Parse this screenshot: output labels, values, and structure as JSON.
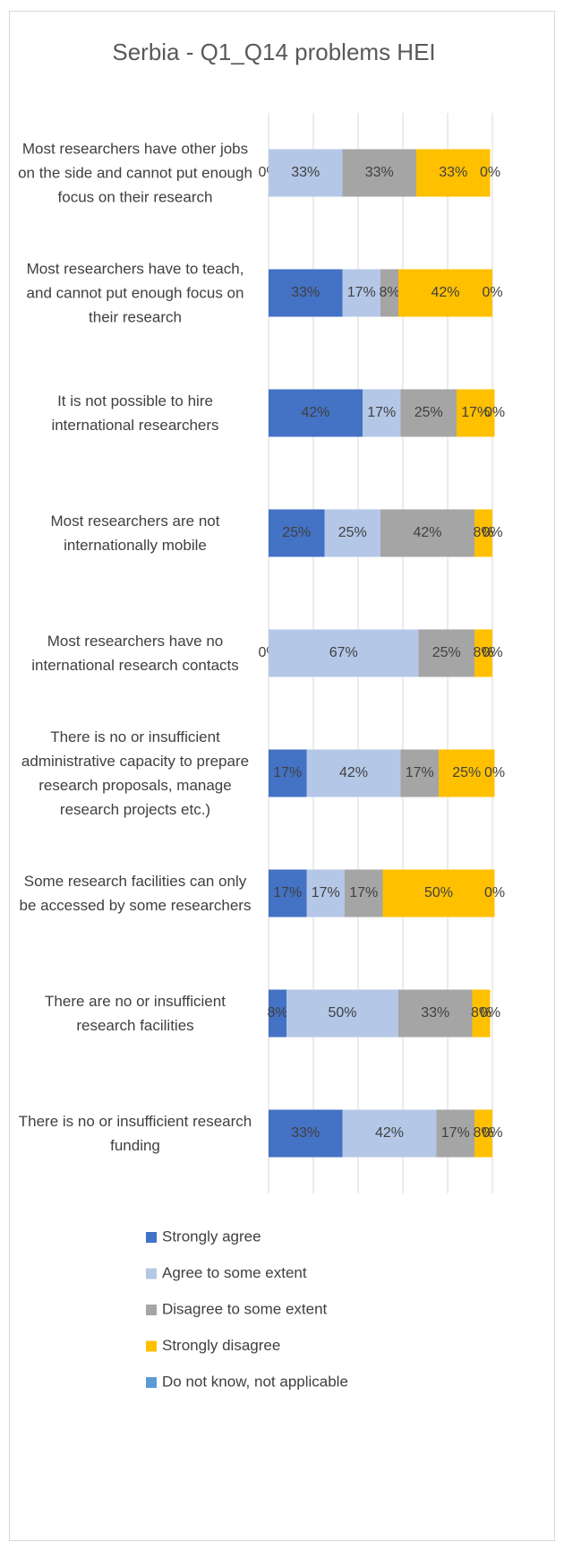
{
  "chart_data": {
    "type": "stacked_bar_horizontal",
    "title": "Serbia - Q1_Q14 problems HEI",
    "categories": [
      "Most researchers have other jobs on the side and cannot put enough focus on their research",
      "Most researchers have to teach, and cannot put enough focus on their research",
      "It is not possible to hire international researchers",
      "Most researchers are not internationally mobile",
      "Most researchers have no international research contacts",
      "There is no or insufficient administrative capacity to prepare research proposals, manage research projects etc.)",
      "Some research facilities can only be accessed by some researchers",
      "There are no or insufficient research facilities",
      "There is no or insufficient research funding"
    ],
    "series": [
      {
        "name": "Strongly agree",
        "color": "#4472c4",
        "values": [
          0,
          33,
          42,
          25,
          0,
          17,
          17,
          8,
          33
        ],
        "value_labels": [
          "0%",
          "33%",
          "42%",
          "25%",
          "0%",
          "17%",
          "17%",
          "8%",
          "33%"
        ]
      },
      {
        "name": "Agree to some extent",
        "color": "#b4c7e7",
        "values": [
          33,
          17,
          17,
          25,
          67,
          42,
          17,
          50,
          42
        ],
        "value_labels": [
          "33%",
          "17%",
          "17%",
          "25%",
          "67%",
          "42%",
          "17%",
          "50%",
          "42%"
        ]
      },
      {
        "name": "Disagree to some extent",
        "color": "#a5a5a5",
        "values": [
          33,
          8,
          25,
          42,
          25,
          17,
          17,
          33,
          17
        ],
        "value_labels": [
          "33%",
          "8%",
          "25%",
          "42%",
          "25%",
          "17%",
          "17%",
          "33%",
          "17%"
        ]
      },
      {
        "name": "Strongly disagree",
        "color": "#ffc000",
        "values": [
          33,
          42,
          17,
          8,
          8,
          25,
          50,
          8,
          8
        ],
        "value_labels": [
          "33%",
          "42%",
          "17%",
          "8%",
          "8%",
          "25%",
          "50%",
          "8%",
          "8%"
        ]
      },
      {
        "name": "Do not know, not applicable",
        "color": "#5b9bd5",
        "values": [
          0,
          0,
          0,
          0,
          0,
          0,
          0,
          0,
          0
        ],
        "value_labels": [
          "0%",
          "0%",
          "0%",
          "0%",
          "0%",
          "0%",
          "0%",
          "0%",
          "0%"
        ]
      }
    ],
    "xlim": [
      0,
      100
    ],
    "xticks": [
      0,
      20,
      40,
      60,
      80,
      100
    ],
    "grid": true,
    "legend": "bottom"
  }
}
